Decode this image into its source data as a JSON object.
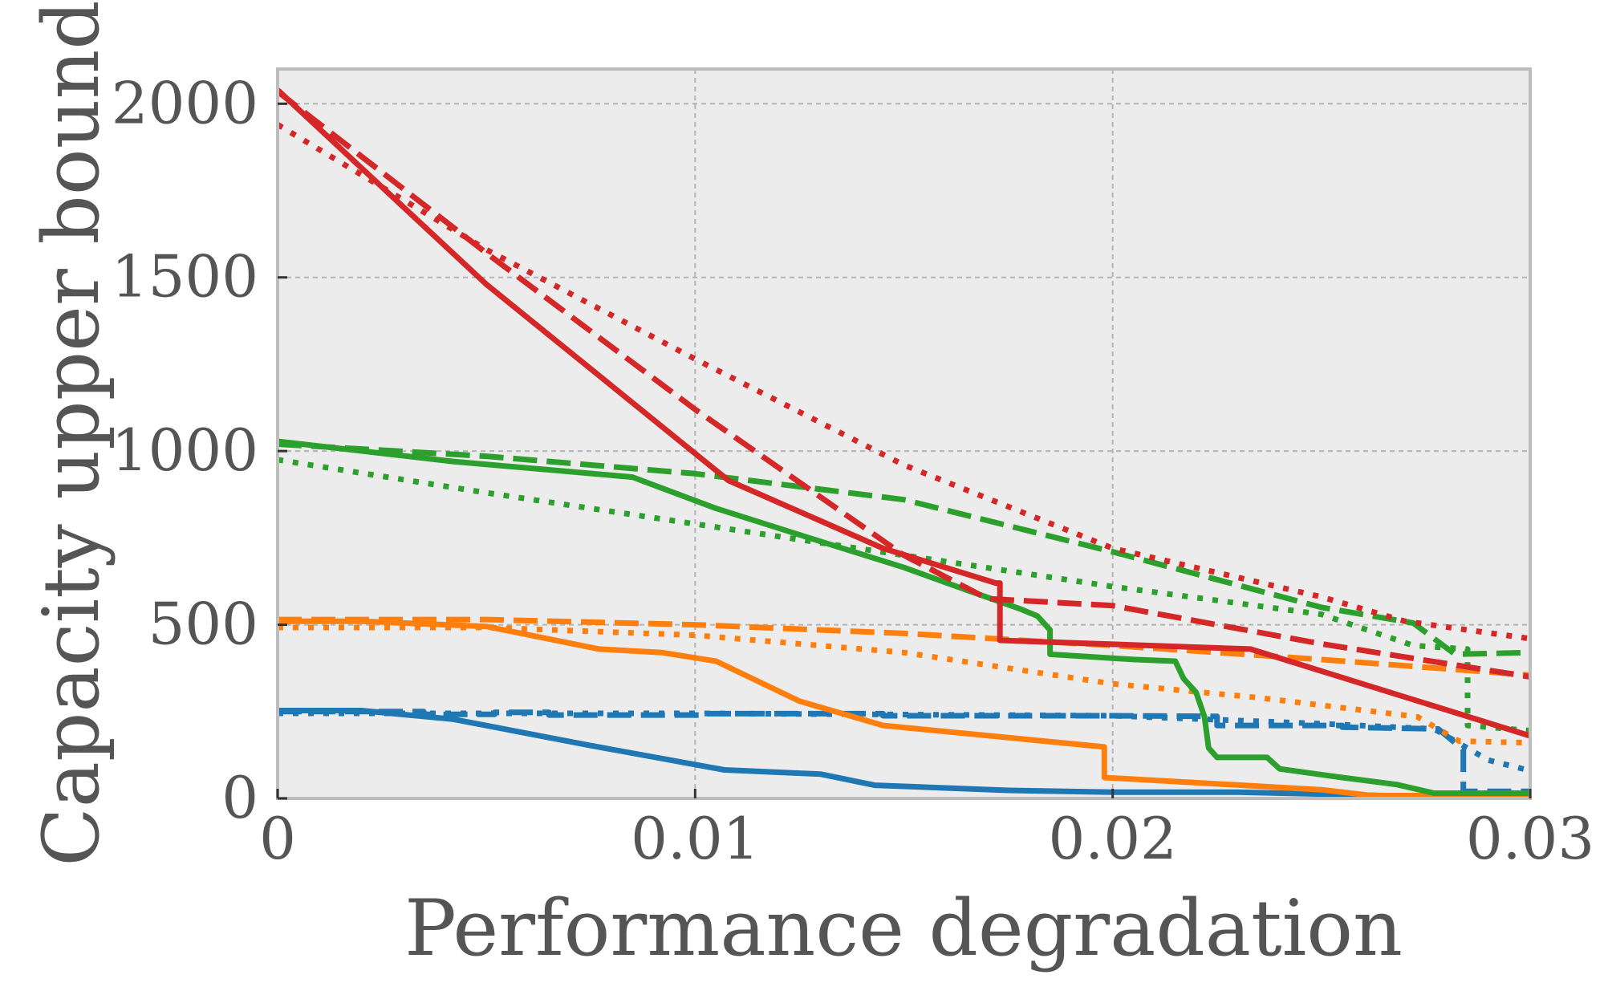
{
  "chart_data": {
    "type": "line",
    "title": "",
    "xlabel": "Performance degradation",
    "ylabel": "Capacity upper bound",
    "xlim": [
      0,
      0.03
    ],
    "ylim": [
      0,
      2100
    ],
    "xticks": [
      0,
      0.01,
      0.02,
      0.03
    ],
    "xtick_labels": [
      "0",
      "0.01",
      "0.02",
      "0.03"
    ],
    "yticks": [
      0,
      500,
      1000,
      1500,
      2000
    ],
    "ytick_labels": [
      "0",
      "500",
      "1000",
      "1500",
      "2000"
    ],
    "grid": true,
    "legend": "none",
    "background": "#ececec",
    "series": [
      {
        "name": "blue-solid",
        "color": "#1f77b4",
        "style": "solid",
        "x": [
          0,
          0.002,
          0.0042,
          0.0075,
          0.0107,
          0.013,
          0.0143,
          0.0175,
          0.02,
          0.023,
          0.0265,
          0.03
        ],
        "y": [
          253,
          253,
          228,
          152,
          82,
          70,
          38,
          23,
          18,
          18,
          8,
          8
        ]
      },
      {
        "name": "blue-dashed",
        "color": "#1f77b4",
        "style": "dashed",
        "x": [
          0,
          0.0035,
          0.0035,
          0.0052,
          0.0052,
          0.0065,
          0.0065,
          0.0102,
          0.0102,
          0.0145,
          0.0145,
          0.02,
          0.0225,
          0.0225,
          0.0255,
          0.0255,
          0.0278,
          0.0284,
          0.0284,
          0.0285,
          0.03
        ],
        "y": [
          250,
          250,
          242,
          242,
          248,
          248,
          240,
          240,
          244,
          244,
          238,
          238,
          236,
          210,
          210,
          205,
          200,
          140,
          20,
          20,
          20
        ]
      },
      {
        "name": "blue-dotted",
        "color": "#1f77b4",
        "style": "dotted",
        "x": [
          0,
          0.01,
          0.02,
          0.025,
          0.0277,
          0.029,
          0.03
        ],
        "y": [
          245,
          245,
          238,
          215,
          200,
          110,
          80
        ]
      },
      {
        "name": "orange-solid",
        "color": "#ff7f0e",
        "style": "solid",
        "x": [
          0,
          0.002,
          0.005,
          0.0077,
          0.0092,
          0.0105,
          0.0125,
          0.0145,
          0.0198,
          0.0198,
          0.025,
          0.0262,
          0.03
        ],
        "y": [
          510,
          510,
          495,
          430,
          420,
          395,
          280,
          210,
          148,
          60,
          25,
          8,
          8
        ]
      },
      {
        "name": "orange-dashed",
        "color": "#ff7f0e",
        "style": "dashed",
        "x": [
          0,
          0.005,
          0.01,
          0.015,
          0.02,
          0.025,
          0.03
        ],
        "y": [
          515,
          515,
          500,
          475,
          440,
          400,
          355
        ]
      },
      {
        "name": "orange-dotted",
        "color": "#ff7f0e",
        "style": "dotted",
        "x": [
          0,
          0.005,
          0.01,
          0.015,
          0.02,
          0.0235,
          0.0273,
          0.0283,
          0.03
        ],
        "y": [
          492,
          492,
          470,
          420,
          330,
          290,
          235,
          165,
          160
        ]
      },
      {
        "name": "green-solid",
        "color": "#2ca02c",
        "style": "solid",
        "x": [
          0,
          0.0042,
          0.0085,
          0.0105,
          0.013,
          0.015,
          0.0165,
          0.0178,
          0.0182,
          0.0185,
          0.0185,
          0.0205,
          0.0215,
          0.0217,
          0.022,
          0.0222,
          0.0223,
          0.0225,
          0.0237,
          0.024,
          0.0255,
          0.0268,
          0.0277,
          0.03
        ],
        "y": [
          1028,
          970,
          925,
          835,
          740,
          665,
          600,
          545,
          525,
          485,
          415,
          400,
          395,
          345,
          305,
          235,
          145,
          118,
          118,
          85,
          60,
          40,
          15,
          15
        ]
      },
      {
        "name": "green-dashed",
        "color": "#2ca02c",
        "style": "dashed",
        "x": [
          0,
          0.005,
          0.01,
          0.015,
          0.02,
          0.025,
          0.0272,
          0.0282,
          0.03
        ],
        "y": [
          1020,
          985,
          935,
          860,
          710,
          550,
          505,
          415,
          420
        ]
      },
      {
        "name": "green-dotted",
        "color": "#2ca02c",
        "style": "dotted",
        "x": [
          0,
          0.005,
          0.01,
          0.015,
          0.02,
          0.025,
          0.0272,
          0.0285,
          0.0285,
          0.03
        ],
        "y": [
          975,
          880,
          790,
          700,
          610,
          530,
          440,
          430,
          210,
          195
        ]
      },
      {
        "name": "red-solid",
        "color": "#d62728",
        "style": "solid",
        "x": [
          0,
          0.005,
          0.0108,
          0.0145,
          0.0172,
          0.0173,
          0.0173,
          0.0233,
          0.03
        ],
        "y": [
          2040,
          1480,
          915,
          720,
          620,
          620,
          455,
          430,
          180
        ]
      },
      {
        "name": "red-dashed",
        "color": "#d62728",
        "style": "dashed",
        "x": [
          0,
          0.005,
          0.01,
          0.015,
          0.017,
          0.02,
          0.025,
          0.03
        ],
        "y": [
          2035,
          1570,
          1120,
          700,
          575,
          555,
          445,
          350
        ]
      },
      {
        "name": "red-dotted",
        "color": "#d62728",
        "style": "dotted",
        "x": [
          0,
          0.005,
          0.01,
          0.015,
          0.02,
          0.025,
          0.027,
          0.03
        ],
        "y": [
          1940,
          1580,
          1265,
          960,
          720,
          580,
          510,
          460
        ]
      }
    ]
  }
}
